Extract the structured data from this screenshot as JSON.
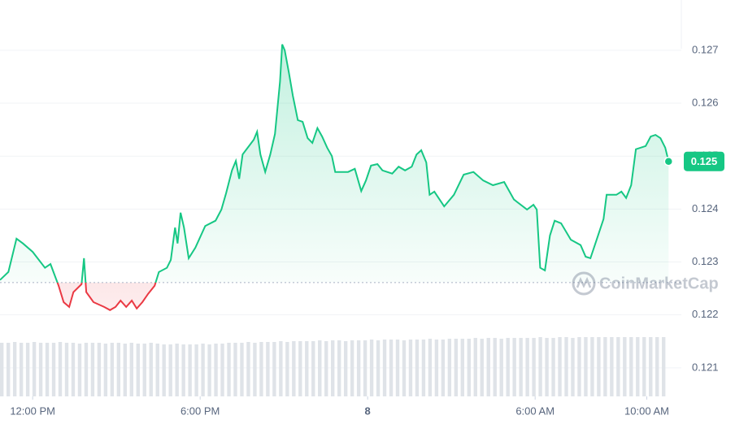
{
  "chart_data": {
    "type": "line",
    "x": [
      -1.17,
      -0.87,
      -0.58,
      -0.35,
      0,
      0.44,
      0.64,
      0.93,
      1.11,
      1.31,
      1.46,
      1.75,
      1.84,
      1.92,
      2.18,
      2.56,
      2.77,
      2.97,
      3.15,
      3.35,
      3.55,
      3.73,
      3.93,
      4.14,
      4.37,
      4.52,
      4.81,
      4.95,
      5.1,
      5.19,
      5.3,
      5.42,
      5.59,
      5.83,
      6.18,
      6.55,
      6.76,
      6.93,
      7.14,
      7.28,
      7.4,
      7.52,
      7.92,
      8.04,
      8.16,
      8.33,
      8.51,
      8.68,
      8.86,
      8.94,
      9.03,
      9.18,
      9.32,
      9.5,
      9.67,
      9.85,
      10.02,
      10.2,
      10.37,
      10.55,
      10.72,
      10.84,
      11.3,
      11.54,
      11.77,
      11.94,
      12.12,
      12.35,
      12.53,
      12.88,
      13.11,
      13.34,
      13.58,
      13.75,
      13.92,
      14.1,
      14.22,
      14.39,
      14.74,
      15.09,
      15.44,
      15.79,
      16.14,
      16.49,
      16.89,
      17.24,
      17.71,
      17.94,
      18.06,
      18.18,
      18.35,
      18.53,
      18.7,
      18.93,
      19.28,
      19.63,
      19.81,
      19.98,
      20.16,
      20.45,
      20.56,
      20.91,
      21.09,
      21.26,
      21.44,
      21.61,
      21.96,
      22.14,
      22.31,
      22.49,
      22.66,
      22.78
    ],
    "series": [
      {
        "color": "#16c784",
        "values": [
          0.12266,
          0.12281,
          0.12344,
          0.12335,
          0.12319,
          0.12289,
          0.12296,
          0.12255,
          0.12224,
          0.12215,
          0.12243,
          0.12258,
          0.12307,
          0.12243,
          0.12224,
          0.12215,
          0.12209,
          0.12215,
          0.12227,
          0.12215,
          0.12227,
          0.12212,
          0.12224,
          0.1224,
          0.12255,
          0.12281,
          0.12289,
          0.12304,
          0.12365,
          0.12335,
          0.12393,
          0.12365,
          0.12307,
          0.12327,
          0.12368,
          0.12378,
          0.12399,
          0.1243,
          0.12473,
          0.12491,
          0.12457,
          0.12503,
          0.12531,
          0.12546,
          0.12503,
          0.1247,
          0.12503,
          0.12542,
          0.12641,
          0.12711,
          0.127,
          0.12657,
          0.12614,
          0.12568,
          0.12565,
          0.12534,
          0.12525,
          0.12553,
          0.12537,
          0.12516,
          0.125,
          0.1247,
          0.1247,
          0.12476,
          0.12434,
          0.12454,
          0.12482,
          0.12485,
          0.12473,
          0.12467,
          0.1248,
          0.12473,
          0.1248,
          0.12503,
          0.12511,
          0.12488,
          0.12427,
          0.12433,
          0.12405,
          0.12427,
          0.12465,
          0.1247,
          0.12454,
          0.12445,
          0.12451,
          0.12418,
          0.12399,
          0.12408,
          0.12399,
          0.12289,
          0.12284,
          0.1235,
          0.12378,
          0.12373,
          0.12342,
          0.12332,
          0.1231,
          0.12307,
          0.12335,
          0.12381,
          0.12427,
          0.12427,
          0.12433,
          0.12421,
          0.12445,
          0.12513,
          0.12519,
          0.12537,
          0.1254,
          0.12534,
          0.12516,
          0.1249
        ]
      }
    ],
    "below_color": "#ea3943",
    "reference": 0.12261,
    "current": {
      "value": 0.1249,
      "label": "0.125"
    },
    "xlim": [
      -1.17,
      23.15
    ],
    "xticks": [
      {
        "value": 0,
        "label": "12:00 PM"
      },
      {
        "value": 6,
        "label": "6:00 PM"
      },
      {
        "value": 12,
        "label": "8"
      },
      {
        "value": 18,
        "label": "6:00 AM"
      },
      {
        "value": 22,
        "label": "10:00 AM"
      }
    ],
    "ylim": [
      0.12046,
      0.12795
    ],
    "yticks": [
      0.121,
      0.122,
      0.123,
      0.124,
      0.125,
      0.126,
      0.127
    ],
    "grid": true,
    "volume": {
      "color": "#dfe3e8",
      "ylim": [
        0,
        100
      ],
      "values": [
        66,
        66,
        67,
        66,
        66,
        67,
        66,
        66,
        66,
        67,
        66,
        66,
        65,
        66,
        66,
        66,
        65,
        66,
        66,
        65,
        66,
        65,
        65,
        66,
        65,
        64,
        64,
        65,
        64,
        64,
        64,
        65,
        64,
        65,
        65,
        66,
        66,
        66,
        67,
        66,
        67,
        67,
        67,
        68,
        67,
        68,
        68,
        68,
        68,
        69,
        68,
        69,
        69,
        68,
        69,
        69,
        69,
        70,
        69,
        70,
        70,
        70,
        69,
        70,
        70,
        70,
        71,
        70,
        70,
        71,
        71,
        71,
        71,
        72,
        71,
        72,
        72,
        71,
        72,
        72,
        72,
        72,
        72,
        73,
        72,
        72,
        73,
        73,
        72,
        73,
        73,
        73,
        73,
        73,
        73,
        73,
        73,
        73,
        73,
        73,
        73,
        73,
        73
      ]
    },
    "watermark": "CoinMarketCap"
  }
}
